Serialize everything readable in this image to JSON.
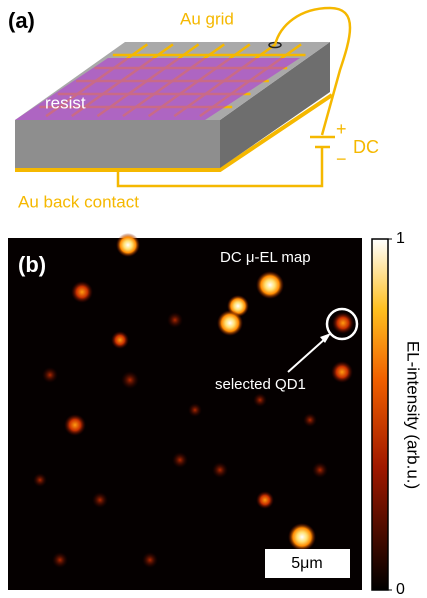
{
  "panel_a": {
    "label": "(a)",
    "grid_label": "Au grid",
    "resist_label": "resist",
    "plus": "+",
    "source": "DC",
    "minus": "−",
    "back_contact_label": "Au back contact"
  },
  "panel_b": {
    "label": "(b)",
    "title": "DC μ-EL map",
    "annotation": "selected QD1",
    "scale_bar": "5μm",
    "colorbar": {
      "label": "EL-intensity (arb.u.)",
      "ticks": [
        0,
        1
      ]
    }
  }
}
